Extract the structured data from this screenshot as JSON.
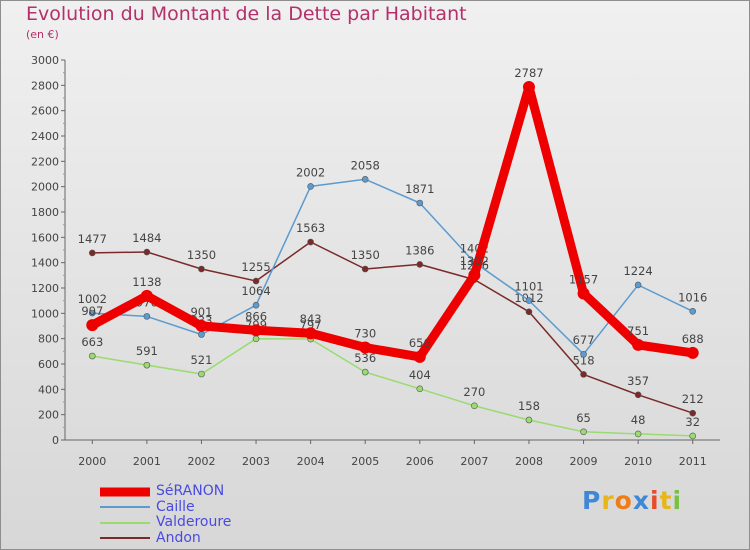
{
  "header": {
    "title": "Evolution du Montant de la Dette par Habitant",
    "subtitle": "(en €)"
  },
  "logo": {
    "text": "Proxiti",
    "letters": [
      "P",
      "r",
      "o",
      "x",
      "i",
      "t",
      "i"
    ],
    "colors": [
      "#3f88d8",
      "#e8b51c",
      "#f07c17",
      "#3f88d8",
      "#e84a2a",
      "#e8b51c",
      "#79c144"
    ]
  },
  "chart_data": {
    "type": "line",
    "title": "Evolution du Montant de la Dette par Habitant",
    "subtitle": "(en €)",
    "xlabel": "",
    "ylabel": "",
    "x": [
      "2000",
      "2001",
      "2002",
      "2003",
      "2004",
      "2005",
      "2006",
      "2007",
      "2008",
      "2009",
      "2010",
      "2011"
    ],
    "ylim": [
      0,
      3000
    ],
    "yticks": [
      0,
      200,
      400,
      600,
      800,
      1000,
      1200,
      1400,
      1600,
      1800,
      2000,
      2200,
      2400,
      2600,
      2800,
      3000
    ],
    "grid": false,
    "legend": "bottom-left",
    "series": [
      {
        "name": "SéRANON",
        "color": "#ee0000",
        "values": [
          907,
          1138,
          901,
          866,
          843,
          730,
          656,
          1302,
          2787,
          1157,
          751,
          688
        ]
      },
      {
        "name": "Caille",
        "color": "#5b9bd0",
        "values": [
          1002,
          976,
          833,
          1064,
          2002,
          2058,
          1871,
          1402,
          1101,
          677,
          1224,
          1016
        ]
      },
      {
        "name": "Valderoure",
        "color": "#99db6e",
        "values": [
          663,
          591,
          521,
          799,
          797,
          536,
          404,
          270,
          158,
          65,
          48,
          32
        ]
      },
      {
        "name": "Andon",
        "color": "#7a2a2a",
        "values": [
          1477,
          1484,
          1350,
          1255,
          1563,
          1350,
          1386,
          1266,
          1012,
          518,
          357,
          212
        ]
      }
    ]
  }
}
